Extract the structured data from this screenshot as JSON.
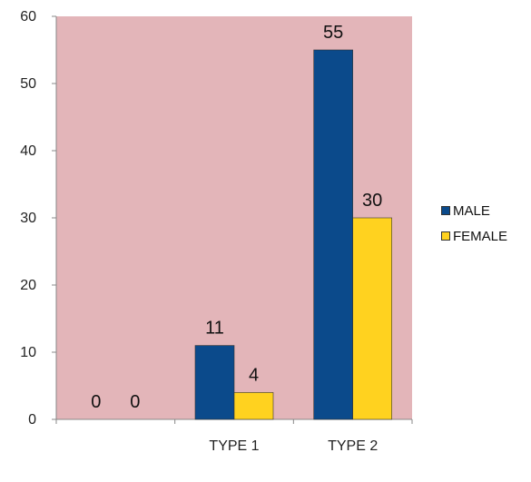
{
  "chart_data": {
    "type": "bar",
    "categories": [
      "",
      "TYPE 1",
      "TYPE 2"
    ],
    "series": [
      {
        "name": "MALE",
        "values": [
          0,
          11,
          55
        ],
        "color": "#0B4A8B"
      },
      {
        "name": "FEMALE",
        "values": [
          0,
          4,
          30
        ],
        "color": "#FFD21F"
      }
    ],
    "ylim": [
      0,
      60
    ],
    "yticks": [
      "0",
      "10",
      "20",
      "30",
      "40",
      "50",
      "60"
    ],
    "plot_background": "#E3B5B9",
    "legend_position": "right",
    "data_labels": true
  }
}
